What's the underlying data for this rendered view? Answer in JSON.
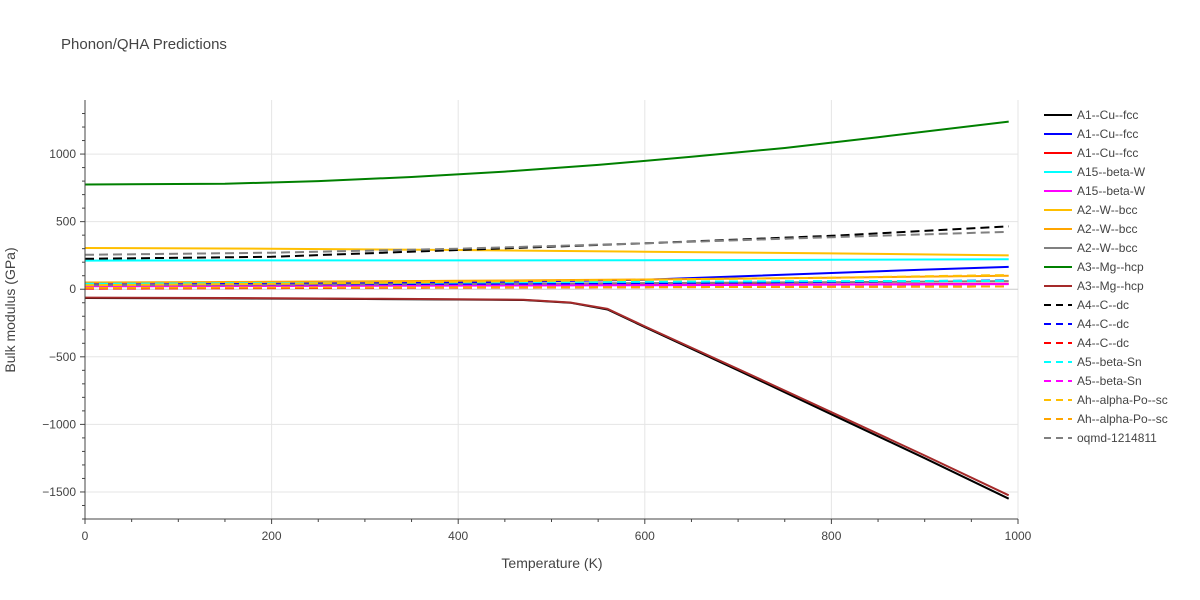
{
  "chart_data": {
    "type": "line",
    "title": "Phonon/QHA Predictions",
    "xlabel": "Temperature (K)",
    "ylabel": "Bulk modulus (GPa)",
    "xlim": [
      0,
      1000
    ],
    "ylim": [
      -1700,
      1400
    ],
    "xticks": [
      0,
      200,
      400,
      600,
      800,
      1000
    ],
    "yticks": [
      1000,
      500,
      0,
      -500,
      -1000,
      -1500
    ],
    "ytick_labels": [
      "1000",
      "500",
      "0",
      "−500",
      "−1000",
      "−1500"
    ],
    "grid": true,
    "legend_position": "right",
    "series": [
      {
        "name": "A1--Cu--fcc",
        "color": "#000000",
        "dash": "solid",
        "x": [
          0,
          150,
          300,
          400,
          470,
          520,
          560,
          600,
          700,
          800,
          900,
          990
        ],
        "y": [
          -65,
          -68,
          -72,
          -76,
          -80,
          -100,
          -150,
          -280,
          -600,
          -925,
          -1250,
          -1550
        ]
      },
      {
        "name": "A1--Cu--fcc",
        "color": "#0000ff",
        "dash": "solid",
        "x": [
          0,
          200,
          400,
          600,
          700,
          800,
          900,
          990
        ],
        "y": [
          35,
          40,
          50,
          70,
          95,
          120,
          145,
          165
        ]
      },
      {
        "name": "A1--Cu--fcc",
        "color": "#ff0000",
        "dash": "solid",
        "x": [
          0,
          200,
          400,
          600,
          800,
          990
        ],
        "y": [
          25,
          27,
          30,
          33,
          36,
          40
        ]
      },
      {
        "name": "A15--beta-W",
        "color": "#00ffff",
        "dash": "solid",
        "x": [
          0,
          200,
          400,
          600,
          800,
          990
        ],
        "y": [
          212,
          213,
          213,
          215,
          218,
          222
        ]
      },
      {
        "name": "A15--beta-W",
        "color": "#ff00ff",
        "dash": "solid",
        "x": [
          0,
          200,
          400,
          600,
          800,
          990
        ],
        "y": [
          22,
          24,
          27,
          30,
          34,
          38
        ]
      },
      {
        "name": "A2--W--bcc",
        "color": "#ffbf00",
        "dash": "solid",
        "x": [
          0,
          200,
          400,
          600,
          800,
          990
        ],
        "y": [
          305,
          300,
          290,
          278,
          265,
          250
        ]
      },
      {
        "name": "A2--W--bcc",
        "color": "#ffa500",
        "dash": "solid",
        "x": [
          0,
          200,
          400,
          600,
          800,
          990
        ],
        "y": [
          50,
          55,
          62,
          72,
          85,
          100
        ]
      },
      {
        "name": "A2--W--bcc",
        "color": "#808080",
        "dash": "solid",
        "x": [
          0,
          200,
          400,
          600,
          800,
          990
        ],
        "y": [
          30,
          33,
          38,
          45,
          52,
          60
        ]
      },
      {
        "name": "A3--Mg--hcp",
        "color": "#008000",
        "dash": "solid",
        "x": [
          0,
          150,
          250,
          350,
          450,
          550,
          650,
          750,
          850,
          990
        ],
        "y": [
          775,
          780,
          800,
          830,
          870,
          920,
          980,
          1045,
          1125,
          1240
        ]
      },
      {
        "name": "A3--Mg--hcp",
        "color": "#a52a2a",
        "dash": "solid",
        "x": [
          0,
          150,
          300,
          400,
          470,
          520,
          560,
          600,
          700,
          800,
          900,
          990
        ],
        "y": [
          -62,
          -65,
          -70,
          -74,
          -78,
          -98,
          -145,
          -275,
          -590,
          -910,
          -1230,
          -1525
        ]
      },
      {
        "name": "A4--C--dc",
        "color": "#000000",
        "dash": "dash",
        "x": [
          0,
          200,
          400,
          600,
          800,
          990
        ],
        "y": [
          225,
          240,
          290,
          340,
          395,
          465
        ]
      },
      {
        "name": "A4--C--dc",
        "color": "#0000ff",
        "dash": "dash",
        "x": [
          0,
          200,
          400,
          600,
          800,
          990
        ],
        "y": [
          15,
          22,
          35,
          45,
          55,
          65
        ]
      },
      {
        "name": "A4--C--dc",
        "color": "#ff0000",
        "dash": "dash",
        "x": [
          0,
          200,
          400,
          600,
          800,
          990
        ],
        "y": [
          5,
          8,
          12,
          15,
          18,
          20
        ]
      },
      {
        "name": "A5--beta-Sn",
        "color": "#00ffff",
        "dash": "dash",
        "x": [
          0,
          200,
          400,
          600,
          800,
          990
        ],
        "y": [
          40,
          45,
          50,
          55,
          60,
          62
        ]
      },
      {
        "name": "A5--beta-Sn",
        "color": "#ff00ff",
        "dash": "dash",
        "x": [
          0,
          200,
          400,
          600,
          800,
          990
        ],
        "y": [
          18,
          20,
          25,
          30,
          34,
          38
        ]
      },
      {
        "name": "Ah--alpha-Po--sc",
        "color": "#ffbf00",
        "dash": "dash",
        "x": [
          0,
          200,
          400,
          600,
          800,
          990
        ],
        "y": [
          30,
          40,
          55,
          70,
          85,
          105
        ]
      },
      {
        "name": "Ah--alpha-Po--sc",
        "color": "#ffa500",
        "dash": "dash",
        "x": [
          0,
          200,
          400,
          600,
          800,
          990
        ],
        "y": [
          10,
          12,
          14,
          16,
          18,
          20
        ]
      },
      {
        "name": "oqmd-1214811",
        "color": "#808080",
        "dash": "dash",
        "x": [
          0,
          200,
          400,
          600,
          800,
          990
        ],
        "y": [
          255,
          270,
          300,
          340,
          385,
          425
        ]
      }
    ]
  }
}
